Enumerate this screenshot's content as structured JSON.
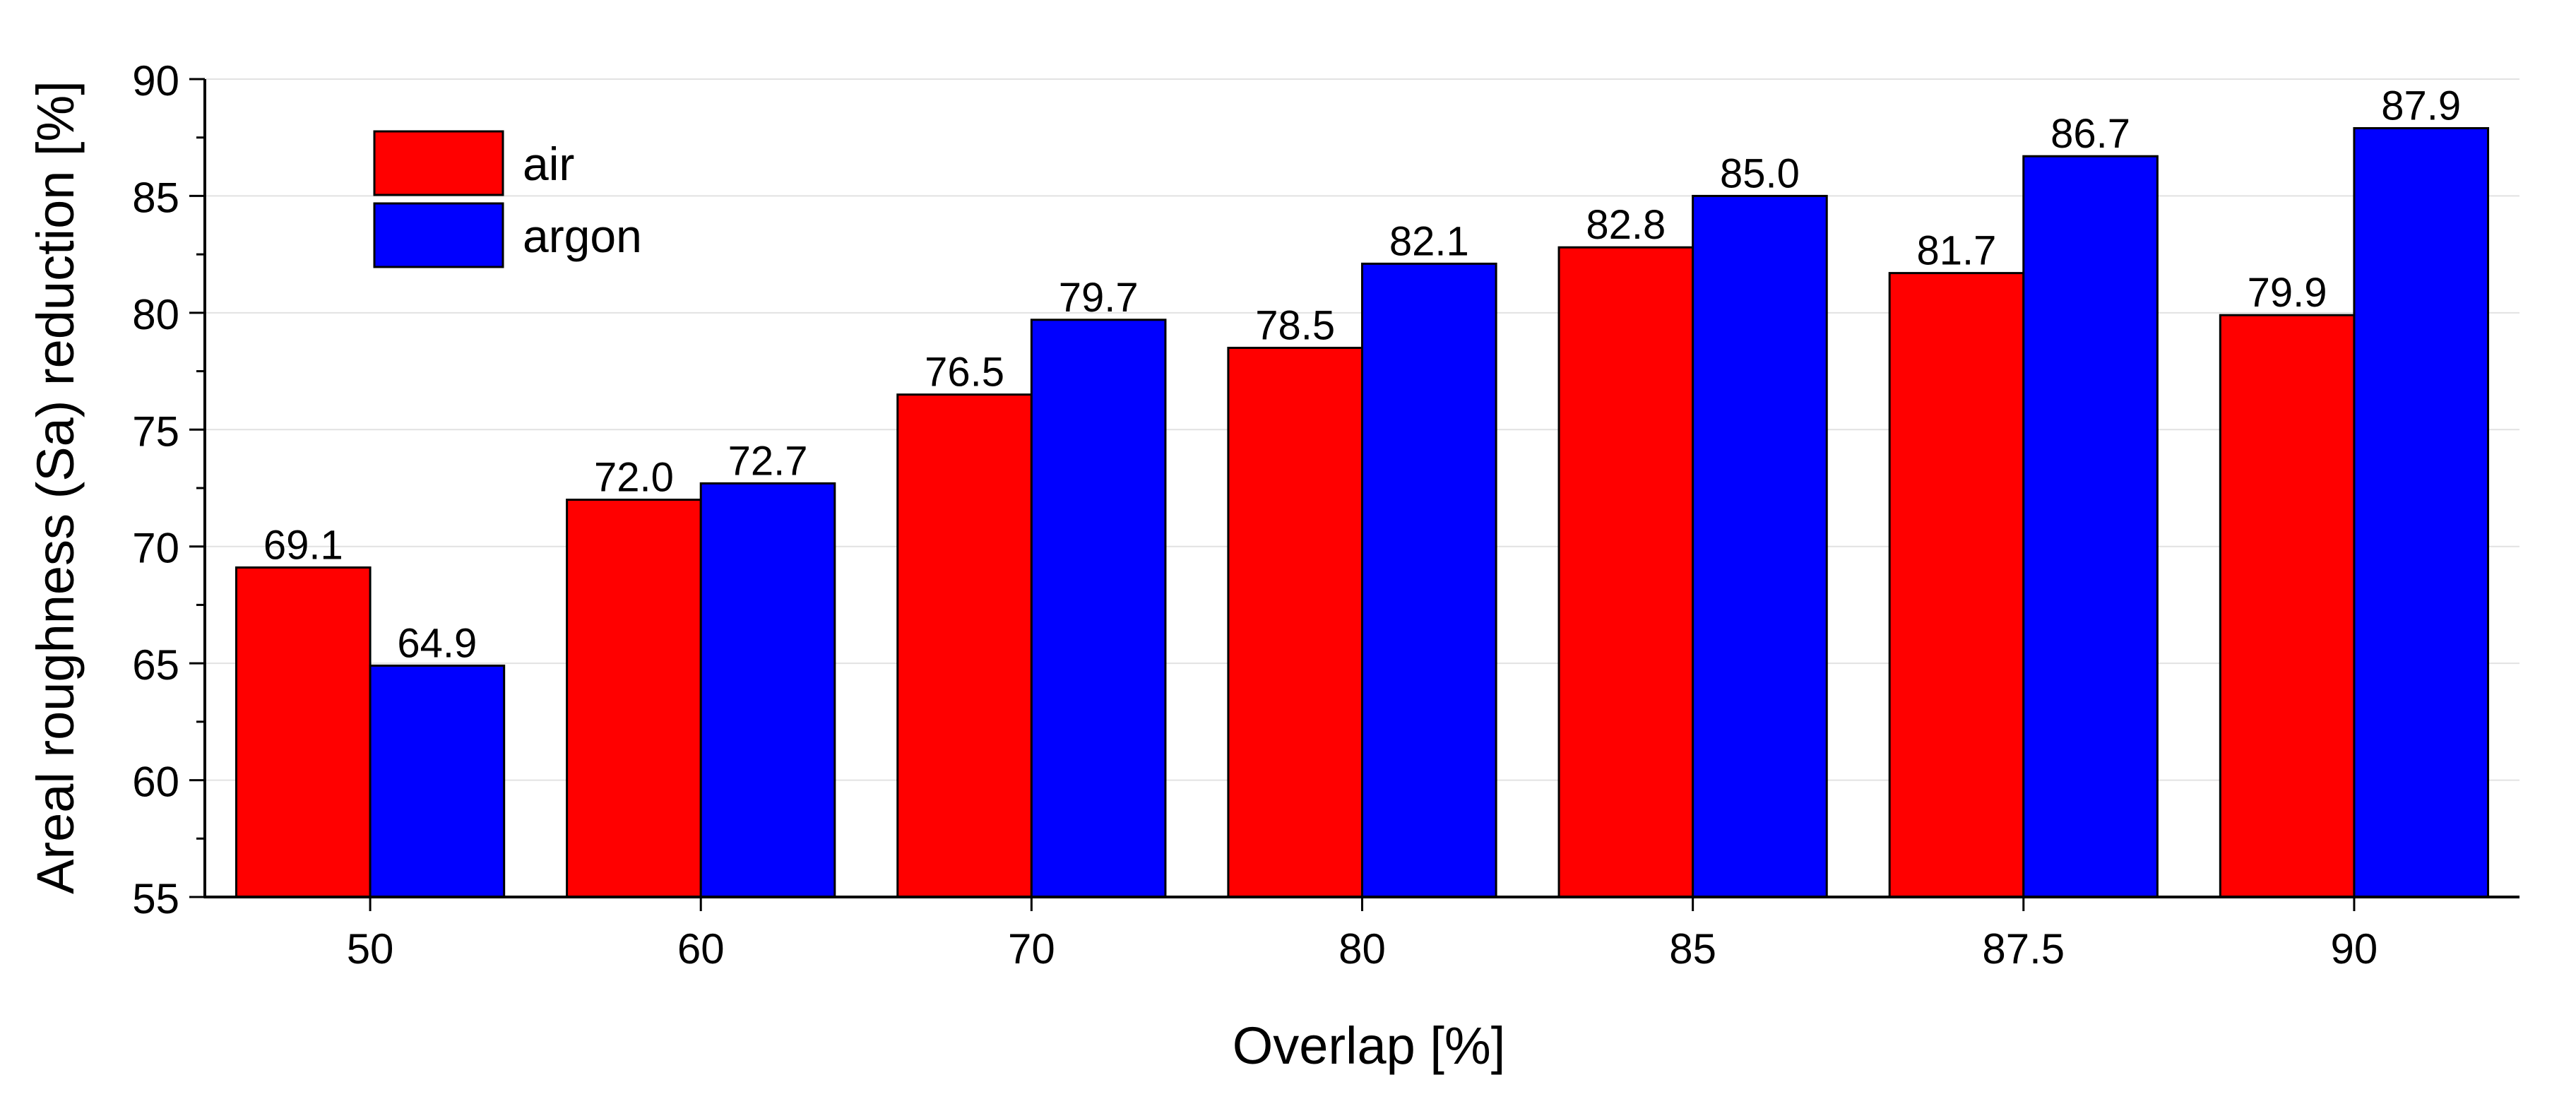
{
  "chart_data": {
    "type": "bar",
    "title": "",
    "xlabel": "Overlap [%]",
    "ylabel": "Areal roughness (Sa) reduction [%]",
    "categories": [
      "50",
      "60",
      "70",
      "80",
      "85",
      "87.5",
      "90"
    ],
    "series": [
      {
        "name": "air",
        "color": "#ff0000",
        "values": [
          69.1,
          72.0,
          76.5,
          78.5,
          82.8,
          81.7,
          79.9
        ],
        "labels": [
          "69.1",
          "72.0",
          "76.5",
          "78.5",
          "82.8",
          "81.7",
          "79.9"
        ]
      },
      {
        "name": "argon",
        "color": "#0000ff",
        "values": [
          64.9,
          72.7,
          79.7,
          82.1,
          85.0,
          86.7,
          87.9
        ],
        "labels": [
          "64.9",
          "72.7",
          "79.7",
          "82.1",
          "85.0",
          "86.7",
          "87.9"
        ]
      }
    ],
    "ylim": [
      55,
      90
    ],
    "yticks": [
      "55",
      "60",
      "65",
      "70",
      "75",
      "80",
      "85",
      "90"
    ],
    "grid": "y-major",
    "legend": "top-left"
  }
}
